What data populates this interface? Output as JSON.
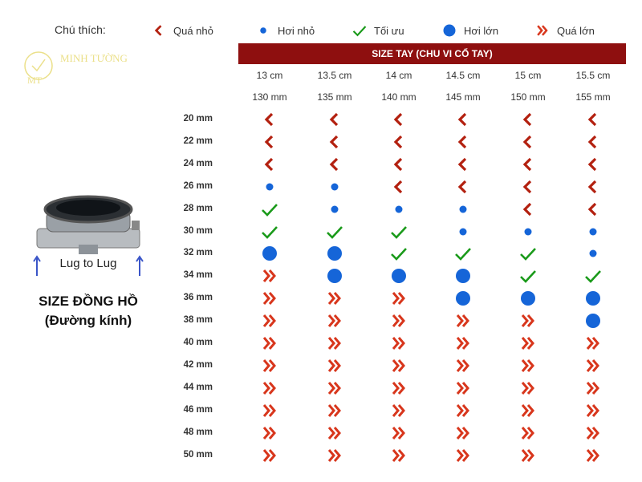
{
  "legend": {
    "title": "Chú thích:",
    "items": [
      {
        "code": "S",
        "label": "Quá nhỏ",
        "icon": "chevron-left-icon"
      },
      {
        "code": "s",
        "label": "Hơi nhỏ",
        "icon": "small-dot-icon"
      },
      {
        "code": "O",
        "label": "Tối ưu",
        "icon": "check-icon"
      },
      {
        "code": "l",
        "label": "Hơi lớn",
        "icon": "large-dot-icon"
      },
      {
        "code": "L",
        "label": "Quá lớn",
        "icon": "double-chevron-right-icon"
      }
    ]
  },
  "logo": {
    "name": "MINH TƯỜNG",
    "initials": "MT"
  },
  "header": {
    "title": "SIZE TAY  (CHU VI CỔ TAY)"
  },
  "columns": [
    {
      "cm": "13 cm",
      "mm": "130 mm"
    },
    {
      "cm": "13.5 cm",
      "mm": "135 mm"
    },
    {
      "cm": "14 cm",
      "mm": "140 mm"
    },
    {
      "cm": "14.5 cm",
      "mm": "145 mm"
    },
    {
      "cm": "15 cm",
      "mm": "150 mm"
    },
    {
      "cm": "15.5 cm",
      "mm": "155 mm"
    }
  ],
  "watch": {
    "lug_label": "Lug to Lug",
    "title": "SIZE ĐỒNG HỒ",
    "subtitle": "(Đường kính)"
  },
  "rows": [
    {
      "label": "20 mm",
      "cells": [
        "S",
        "S",
        "S",
        "S",
        "S",
        "S"
      ]
    },
    {
      "label": "22 mm",
      "cells": [
        "S",
        "S",
        "S",
        "S",
        "S",
        "S"
      ]
    },
    {
      "label": "24 mm",
      "cells": [
        "S",
        "S",
        "S",
        "S",
        "S",
        "S"
      ]
    },
    {
      "label": "26 mm",
      "cells": [
        "s",
        "s",
        "S",
        "S",
        "S",
        "S"
      ]
    },
    {
      "label": "28 mm",
      "cells": [
        "O",
        "s",
        "s",
        "s",
        "S",
        "S"
      ]
    },
    {
      "label": "30 mm",
      "cells": [
        "O",
        "O",
        "O",
        "s",
        "s",
        "s"
      ]
    },
    {
      "label": "32 mm",
      "cells": [
        "l",
        "l",
        "O",
        "O",
        "O",
        "s"
      ]
    },
    {
      "label": "34 mm",
      "cells": [
        "L",
        "l",
        "l",
        "l",
        "O",
        "O"
      ]
    },
    {
      "label": "36 mm",
      "cells": [
        "L",
        "L",
        "L",
        "l",
        "l",
        "l"
      ]
    },
    {
      "label": "38 mm",
      "cells": [
        "L",
        "L",
        "L",
        "L",
        "L",
        "l"
      ]
    },
    {
      "label": "40 mm",
      "cells": [
        "L",
        "L",
        "L",
        "L",
        "L",
        "L"
      ]
    },
    {
      "label": "42 mm",
      "cells": [
        "L",
        "L",
        "L",
        "L",
        "L",
        "L"
      ]
    },
    {
      "label": "44 mm",
      "cells": [
        "L",
        "L",
        "L",
        "L",
        "L",
        "L"
      ]
    },
    {
      "label": "46 mm",
      "cells": [
        "L",
        "L",
        "L",
        "L",
        "L",
        "L"
      ]
    },
    {
      "label": "48 mm",
      "cells": [
        "L",
        "L",
        "L",
        "L",
        "L",
        "L"
      ]
    },
    {
      "label": "50 mm",
      "cells": [
        "L",
        "L",
        "L",
        "L",
        "L",
        "L"
      ]
    }
  ],
  "colors": {
    "too_small": "#b3200f",
    "blue": "#1565d8",
    "green": "#1a9a1a",
    "too_large": "#d8361c",
    "header": "#8e0f0f"
  }
}
